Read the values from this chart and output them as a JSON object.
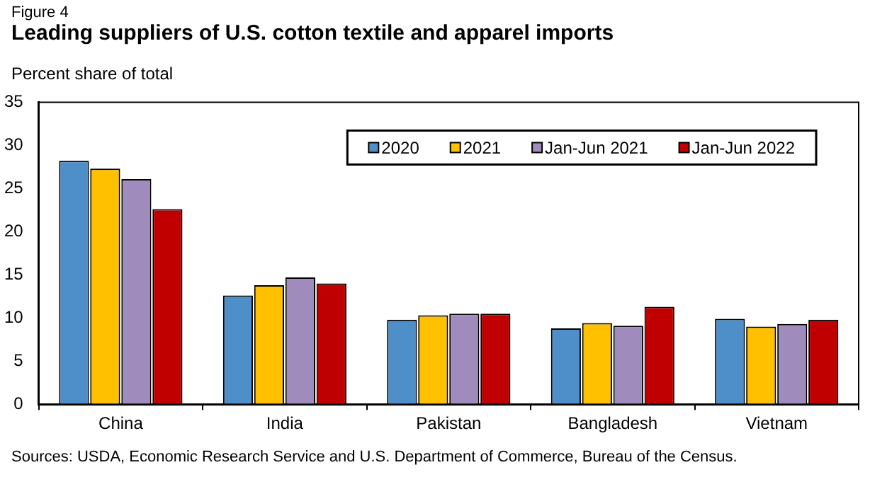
{
  "chart_data": {
    "type": "bar",
    "title": "Leading suppliers of U.S. cotton textile and apparel imports",
    "ylabel": "Percent share of total",
    "annotations": [
      "Figure 4",
      "Sources: USDA, Economic Research Service and U.S. Department of Commerce, Bureau of the Census."
    ],
    "categories": [
      "China",
      "India",
      "Pakistan",
      "Bangladesh",
      "Vietnam"
    ],
    "series": [
      {
        "name": "2020",
        "color": "#4f8fc9",
        "values": [
          28.2,
          12.6,
          9.8,
          8.8,
          9.9
        ]
      },
      {
        "name": "2021",
        "color": "#ffc000",
        "values": [
          27.3,
          13.8,
          10.3,
          9.4,
          9.0
        ]
      },
      {
        "name": "Jan-Jun 2021",
        "color": "#a08cbc",
        "values": [
          26.1,
          14.7,
          10.5,
          9.1,
          9.3
        ]
      },
      {
        "name": "Jan-Jun 2022",
        "color": "#c00000",
        "values": [
          22.6,
          14.0,
          10.5,
          11.3,
          9.8
        ]
      }
    ],
    "ylim": [
      0,
      35
    ],
    "yticks": [
      0,
      5,
      10,
      15,
      20,
      25,
      30,
      35
    ],
    "grid": false,
    "legend": "top right"
  }
}
